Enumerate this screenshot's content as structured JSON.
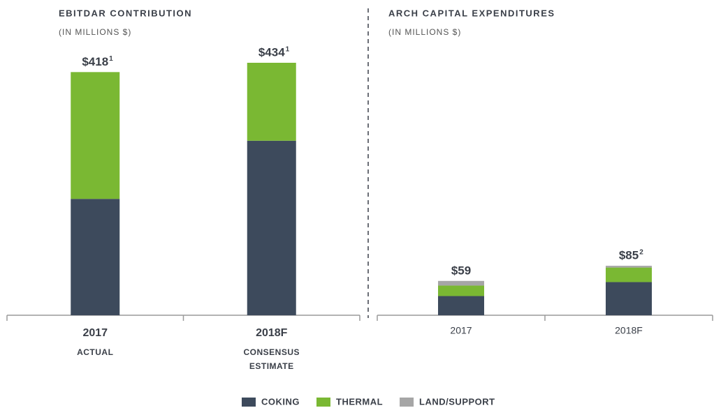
{
  "chart_data": [
    {
      "type": "stacked-bar",
      "title": "EBITDAR CONTRIBUTION",
      "subtitle": "(IN MILLIONS $)",
      "categories": [
        "2017",
        "2018F"
      ],
      "category_notes": [
        [
          "ACTUAL"
        ],
        [
          "CONSENSUS",
          "ESTIMATE"
        ]
      ],
      "series": [
        {
          "name": "COKING",
          "color": "#3d4a5c",
          "values": [
            200,
            300
          ]
        },
        {
          "name": "THERMAL",
          "color": "#7ab833",
          "values": [
            218,
            134
          ]
        }
      ],
      "totals": [
        418,
        434
      ],
      "total_labels": [
        "$418",
        "$434"
      ],
      "footnotes": [
        "1",
        "1"
      ],
      "ylim": [
        0,
        440
      ]
    },
    {
      "type": "stacked-bar",
      "title": "ARCH CAPITAL EXPENDITURES",
      "subtitle": "(IN MILLIONS $)",
      "categories": [
        "2017",
        "2018F"
      ],
      "series": [
        {
          "name": "COKING",
          "color": "#3d4a5c",
          "values": [
            33,
            57
          ]
        },
        {
          "name": "THERMAL",
          "color": "#7ab833",
          "values": [
            18,
            25
          ]
        },
        {
          "name": "LAND/SUPPORT",
          "color": "#a6a6a6",
          "values": [
            8,
            3
          ]
        }
      ],
      "totals": [
        59,
        85
      ],
      "total_labels": [
        "$59",
        "$85"
      ],
      "footnotes": [
        null,
        "2"
      ],
      "ylim": [
        0,
        440
      ]
    }
  ]
}
